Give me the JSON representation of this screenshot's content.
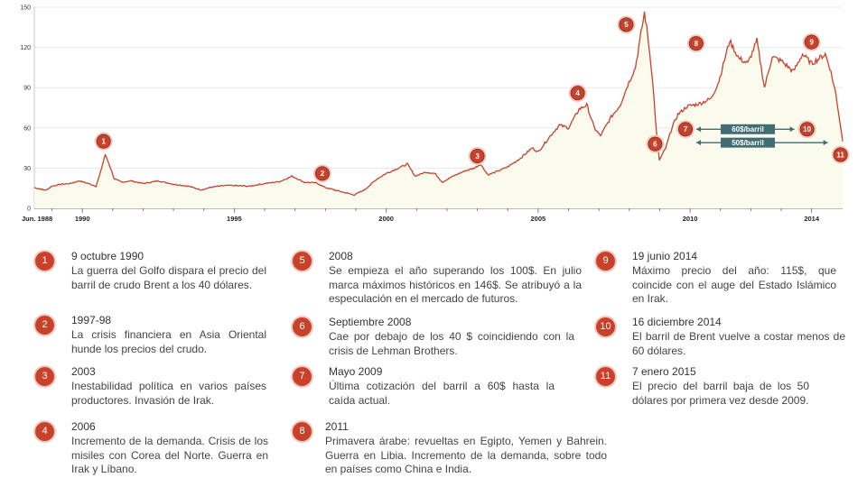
{
  "chart_data": {
    "type": "area",
    "title": "",
    "xlabel": "",
    "ylabel": "",
    "ylim": [
      0,
      150
    ],
    "xlim": [
      1988.42,
      2015.02
    ],
    "yticks": [
      0,
      30,
      60,
      90,
      120,
      150
    ],
    "xtick_labels": [
      {
        "x": 1988.42,
        "label": "Jun. 1988"
      },
      {
        "x": 1990,
        "label": "1990"
      },
      {
        "x": 1995,
        "label": "1995"
      },
      {
        "x": 2000,
        "label": "2000"
      },
      {
        "x": 2005,
        "label": "2005"
      },
      {
        "x": 2010,
        "label": "2010"
      },
      {
        "x": 2014,
        "label": "2014"
      }
    ],
    "series": [
      {
        "values": [
          [
            1988.42,
            15.5
          ],
          [
            1988.6,
            14.5
          ],
          [
            1988.8,
            13.5
          ],
          [
            1989.0,
            16.5
          ],
          [
            1989.3,
            18.0
          ],
          [
            1989.6,
            18.5
          ],
          [
            1989.9,
            20.5
          ],
          [
            1990.2,
            18.5
          ],
          [
            1990.45,
            16.5
          ],
          [
            1990.6,
            27.0
          ],
          [
            1990.75,
            40.0
          ],
          [
            1990.9,
            32.0
          ],
          [
            1991.05,
            22.0
          ],
          [
            1991.3,
            19.5
          ],
          [
            1991.6,
            20.5
          ],
          [
            1992.0,
            18.5
          ],
          [
            1992.5,
            20.5
          ],
          [
            1993.0,
            18.0
          ],
          [
            1993.5,
            16.5
          ],
          [
            1993.9,
            13.8
          ],
          [
            1994.3,
            16.0
          ],
          [
            1994.7,
            17.0
          ],
          [
            1995.0,
            17.0
          ],
          [
            1995.5,
            16.5
          ],
          [
            1996.0,
            18.5
          ],
          [
            1996.5,
            20.0
          ],
          [
            1996.9,
            24.0
          ],
          [
            1997.3,
            19.5
          ],
          [
            1997.7,
            19.0
          ],
          [
            1998.0,
            15.5
          ],
          [
            1998.5,
            12.5
          ],
          [
            1998.95,
            10.0
          ],
          [
            1999.3,
            14.0
          ],
          [
            1999.7,
            22.0
          ],
          [
            2000.0,
            26.0
          ],
          [
            2000.3,
            29.0
          ],
          [
            2000.7,
            33.0
          ],
          [
            2000.95,
            24.0
          ],
          [
            2001.3,
            27.0
          ],
          [
            2001.6,
            26.0
          ],
          [
            2001.85,
            19.5
          ],
          [
            2002.2,
            24.0
          ],
          [
            2002.6,
            28.0
          ],
          [
            2002.9,
            30.0
          ],
          [
            2003.1,
            33.0
          ],
          [
            2003.35,
            25.0
          ],
          [
            2003.7,
            28.0
          ],
          [
            2004.0,
            31.0
          ],
          [
            2004.4,
            37.0
          ],
          [
            2004.8,
            45.0
          ],
          [
            2005.0,
            42.0
          ],
          [
            2005.4,
            54.0
          ],
          [
            2005.7,
            62.0
          ],
          [
            2006.0,
            60.0
          ],
          [
            2006.35,
            74.0
          ],
          [
            2006.6,
            77.0
          ],
          [
            2006.85,
            60.0
          ],
          [
            2007.05,
            54.0
          ],
          [
            2007.4,
            68.0
          ],
          [
            2007.7,
            77.0
          ],
          [
            2007.95,
            92.0
          ],
          [
            2008.2,
            105.0
          ],
          [
            2008.5,
            146.0
          ],
          [
            2008.6,
            130.0
          ],
          [
            2008.75,
            100.0
          ],
          [
            2008.9,
            55.0
          ],
          [
            2008.99,
            36.0
          ],
          [
            2009.2,
            45.0
          ],
          [
            2009.4,
            60.0
          ],
          [
            2009.6,
            70.0
          ],
          [
            2009.9,
            76.0
          ],
          [
            2010.3,
            78.0
          ],
          [
            2010.7,
            82.0
          ],
          [
            2010.95,
            95.0
          ],
          [
            2011.3,
            125.0
          ],
          [
            2011.6,
            112.0
          ],
          [
            2011.9,
            108.0
          ],
          [
            2012.2,
            125.0
          ],
          [
            2012.45,
            90.0
          ],
          [
            2012.7,
            113.0
          ],
          [
            2013.0,
            110.0
          ],
          [
            2013.4,
            102.0
          ],
          [
            2013.7,
            115.0
          ],
          [
            2014.0,
            108.0
          ],
          [
            2014.45,
            115.0
          ],
          [
            2014.6,
            105.0
          ],
          [
            2014.8,
            85.0
          ],
          [
            2014.96,
            60.0
          ],
          [
            2015.02,
            50.0
          ]
        ]
      }
    ],
    "markers": [
      {
        "num": "1",
        "x": 1990.7,
        "y": 50
      },
      {
        "num": "2",
        "x": 1997.9,
        "y": 26
      },
      {
        "num": "3",
        "x": 2003.0,
        "y": 39
      },
      {
        "num": "4",
        "x": 2006.3,
        "y": 86
      },
      {
        "num": "5",
        "x": 2007.9,
        "y": 137
      },
      {
        "num": "6",
        "x": 2008.85,
        "y": 48
      },
      {
        "num": "7",
        "x": 2009.85,
        "y": 59
      },
      {
        "num": "8",
        "x": 2010.2,
        "y": 123
      },
      {
        "num": "9",
        "x": 2014.0,
        "y": 124
      },
      {
        "num": "10",
        "x": 2013.85,
        "y": 59
      },
      {
        "num": "11",
        "x": 2014.95,
        "y": 40
      }
    ],
    "annotations": [
      {
        "label": "60$/barril",
        "y": 59,
        "x_from": 2009.85,
        "x_to": 2013.85
      },
      {
        "label": "50$/barril",
        "y": 49,
        "x_from": 2009.85,
        "x_to": 2014.95
      }
    ],
    "grid": true,
    "accent": "#c8412b",
    "fill": "#fbfbed",
    "box": "#3f6d73"
  },
  "events": [
    {
      "num": "1",
      "date": "9 octubre 1990",
      "text": "La guerra del Golfo dispara el precio del barril de crudo Brent a los 40 dólares."
    },
    {
      "num": "2",
      "date": "1997-98",
      "text": "La crisis financiera en Asia Oriental hunde los precios del crudo."
    },
    {
      "num": "3",
      "date": "2003",
      "text": "Inestabilidad política en varios países productores. Invasión de Irak."
    },
    {
      "num": "4",
      "date": "2006",
      "text": "Incremento de la demanda. Crisis de los misiles con Corea del Norte. Guerra en Irak y Líbano."
    },
    {
      "num": "5",
      "date": "2008",
      "text": "Se empieza el año superando los 100$. En julio marca máximos históricos en 146$. Se atribuyó a la especulación en el mercado de futuros."
    },
    {
      "num": "6",
      "date": "Septiembre 2008",
      "text": "Cae por debajo de los 40 $ coincidiendo con la crisis de Lehman Brothers."
    },
    {
      "num": "7",
      "date": "Mayo 2009",
      "text": "Última cotización del barril a 60$ hasta la caída actual."
    },
    {
      "num": "8",
      "date": "2011",
      "text": "Primavera árabe: revueltas en Egipto, Yemen y Bahrein. Guerra en Libia. Incremento de la demanda, sobre todo en países como China e India."
    },
    {
      "num": "9",
      "date": "19 junio 2014",
      "text": "Máximo precio del año: 115$, que coincide con el auge del Estado Islámico en Irak."
    },
    {
      "num": "10",
      "date": "16 diciembre 2014",
      "text": "El barril de Brent vuelve a costar menos de 60 dólares."
    },
    {
      "num": "11",
      "date": "7 enero 2015",
      "text": "El precio del barril baja de los 50 dólares por primera vez desde 2009."
    }
  ]
}
